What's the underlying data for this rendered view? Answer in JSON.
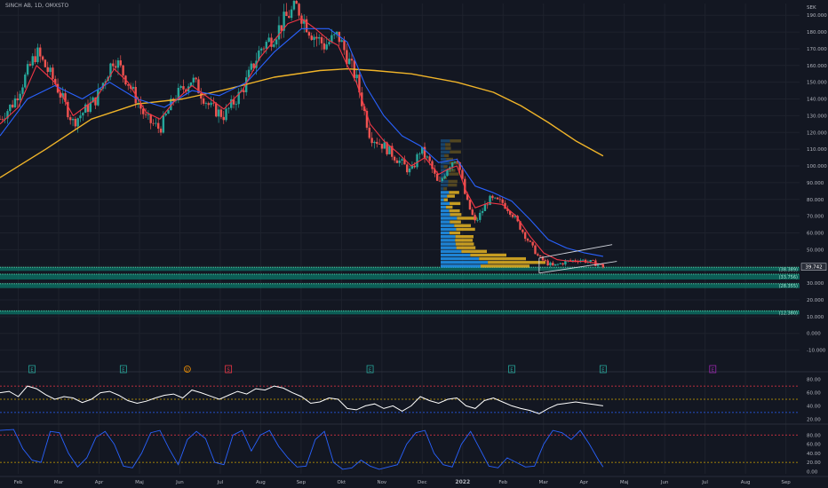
{
  "header": {
    "title": "SINCH AB, 1D, OMXSTO"
  },
  "colors": {
    "background": "#131722",
    "up": "#26a69a",
    "down": "#ef5350",
    "ema_fast": "#f23645",
    "ema_mid": "#2962ff",
    "sma_long": "#f0b429",
    "rsi": "#ffffff",
    "stoch": "#2962ff",
    "zone": "#089981",
    "vp_up": "#2196f3",
    "vp_down": "#e6b422",
    "event": "#26a69a"
  },
  "chart_data": [
    {
      "type": "candlestick",
      "title": "SINCH AB, 1D, OMXSTO",
      "currency": "SEK",
      "x_labels": [
        "Feb",
        "Mar",
        "Apr",
        "Maj",
        "Jun",
        "Jul",
        "Aug",
        "Sep",
        "Okt",
        "Nov",
        "Dec",
        "2022",
        "Feb",
        "Mar",
        "Apr",
        "Maj",
        "Jun",
        "Jul",
        "Aug",
        "Sep"
      ],
      "y_ticks": [
        -10,
        0,
        10,
        20,
        30,
        40,
        50,
        60,
        70,
        80,
        90,
        100,
        110,
        120,
        130,
        140,
        150,
        160,
        170,
        180,
        190
      ],
      "y_range": [
        -15,
        197
      ],
      "last_price": "39.742",
      "zone_labels": [
        "(38.389)",
        "(33.756)",
        "(28.355)",
        "(12.380)"
      ],
      "close_series": [
        [
          0,
          128
        ],
        [
          3,
          138
        ],
        [
          8,
          168
        ],
        [
          12,
          150
        ],
        [
          16,
          126
        ],
        [
          21,
          140
        ],
        [
          25,
          165
        ],
        [
          28,
          150
        ],
        [
          32,
          128
        ],
        [
          35,
          122
        ],
        [
          38,
          140
        ],
        [
          42,
          152
        ],
        [
          46,
          135
        ],
        [
          49,
          130
        ],
        [
          53,
          145
        ],
        [
          57,
          170
        ],
        [
          60,
          178
        ],
        [
          63,
          190
        ],
        [
          65,
          195
        ],
        [
          68,
          180
        ],
        [
          71,
          172
        ],
        [
          74,
          178
        ],
        [
          76,
          165
        ],
        [
          78,
          152
        ],
        [
          81,
          118
        ],
        [
          84,
          112
        ],
        [
          87,
          104
        ],
        [
          90,
          96
        ],
        [
          92,
          110
        ],
        [
          94,
          102
        ],
        [
          96,
          88
        ],
        [
          98,
          100
        ],
        [
          100,
          106
        ],
        [
          102,
          80
        ],
        [
          104,
          66
        ],
        [
          107,
          80
        ],
        [
          110,
          78
        ],
        [
          112,
          72
        ],
        [
          115,
          58
        ],
        [
          118,
          45
        ],
        [
          121,
          40
        ],
        [
          124,
          43
        ],
        [
          127,
          44
        ],
        [
          130,
          42
        ],
        [
          132,
          40
        ]
      ],
      "ema_fast": [
        [
          0,
          125
        ],
        [
          4,
          135
        ],
        [
          8,
          160
        ],
        [
          12,
          150
        ],
        [
          16,
          130
        ],
        [
          21,
          140
        ],
        [
          25,
          158
        ],
        [
          28,
          150
        ],
        [
          32,
          132
        ],
        [
          35,
          128
        ],
        [
          38,
          138
        ],
        [
          42,
          148
        ],
        [
          46,
          140
        ],
        [
          49,
          134
        ],
        [
          53,
          145
        ],
        [
          57,
          165
        ],
        [
          60,
          175
        ],
        [
          63,
          185
        ],
        [
          66,
          188
        ],
        [
          69,
          182
        ],
        [
          72,
          175
        ],
        [
          74,
          172
        ],
        [
          76,
          160
        ],
        [
          78,
          150
        ],
        [
          81,
          125
        ],
        [
          84,
          115
        ],
        [
          87,
          108
        ],
        [
          90,
          100
        ],
        [
          93,
          105
        ],
        [
          96,
          95
        ],
        [
          98,
          98
        ],
        [
          100,
          100
        ],
        [
          102,
          85
        ],
        [
          104,
          75
        ],
        [
          107,
          78
        ],
        [
          110,
          77
        ],
        [
          113,
          70
        ],
        [
          116,
          58
        ],
        [
          119,
          48
        ],
        [
          122,
          44
        ],
        [
          125,
          43
        ],
        [
          128,
          43
        ],
        [
          132,
          41
        ]
      ],
      "ema_mid": [
        [
          0,
          118
        ],
        [
          6,
          140
        ],
        [
          12,
          148
        ],
        [
          18,
          140
        ],
        [
          24,
          150
        ],
        [
          30,
          140
        ],
        [
          36,
          135
        ],
        [
          42,
          145
        ],
        [
          48,
          142
        ],
        [
          54,
          150
        ],
        [
          60,
          168
        ],
        [
          66,
          182
        ],
        [
          72,
          182
        ],
        [
          76,
          174
        ],
        [
          80,
          148
        ],
        [
          84,
          130
        ],
        [
          88,
          118
        ],
        [
          92,
          112
        ],
        [
          96,
          102
        ],
        [
          100,
          104
        ],
        [
          104,
          88
        ],
        [
          108,
          84
        ],
        [
          112,
          79
        ],
        [
          116,
          68
        ],
        [
          120,
          56
        ],
        [
          124,
          51
        ],
        [
          128,
          48
        ],
        [
          132,
          46
        ]
      ],
      "sma_long": [
        [
          0,
          93
        ],
        [
          10,
          110
        ],
        [
          20,
          128
        ],
        [
          30,
          137
        ],
        [
          40,
          140
        ],
        [
          50,
          146
        ],
        [
          60,
          153
        ],
        [
          70,
          157
        ],
        [
          76,
          158
        ],
        [
          82,
          157
        ],
        [
          90,
          155
        ],
        [
          100,
          150
        ],
        [
          108,
          144
        ],
        [
          114,
          136
        ],
        [
          120,
          126
        ],
        [
          126,
          115
        ],
        [
          132,
          106
        ]
      ],
      "resistance_line": [
        [
          118,
          45
        ],
        [
          134,
          53
        ]
      ],
      "support_line": [
        [
          118,
          36
        ],
        [
          135,
          43
        ]
      ]
    },
    {
      "type": "line",
      "title": "RSI",
      "y_ticks": [
        20,
        40,
        60,
        80
      ],
      "levels": [
        30,
        50,
        70
      ],
      "y_range": [
        15,
        85
      ],
      "series": [
        [
          0,
          60
        ],
        [
          2,
          62
        ],
        [
          4,
          54
        ],
        [
          6,
          70
        ],
        [
          8,
          66
        ],
        [
          10,
          57
        ],
        [
          12,
          50
        ],
        [
          14,
          54
        ],
        [
          16,
          52
        ],
        [
          18,
          45
        ],
        [
          20,
          50
        ],
        [
          22,
          60
        ],
        [
          24,
          62
        ],
        [
          26,
          56
        ],
        [
          28,
          48
        ],
        [
          30,
          44
        ],
        [
          32,
          47
        ],
        [
          34,
          52
        ],
        [
          36,
          56
        ],
        [
          38,
          58
        ],
        [
          40,
          52
        ],
        [
          42,
          64
        ],
        [
          44,
          60
        ],
        [
          46,
          55
        ],
        [
          48,
          50
        ],
        [
          50,
          56
        ],
        [
          52,
          62
        ],
        [
          54,
          58
        ],
        [
          56,
          66
        ],
        [
          58,
          64
        ],
        [
          60,
          70
        ],
        [
          62,
          67
        ],
        [
          64,
          60
        ],
        [
          66,
          54
        ],
        [
          68,
          44
        ],
        [
          70,
          46
        ],
        [
          72,
          52
        ],
        [
          74,
          50
        ],
        [
          76,
          36
        ],
        [
          78,
          34
        ],
        [
          80,
          40
        ],
        [
          82,
          43
        ],
        [
          84,
          36
        ],
        [
          86,
          40
        ],
        [
          88,
          32
        ],
        [
          90,
          40
        ],
        [
          92,
          54
        ],
        [
          94,
          48
        ],
        [
          96,
          44
        ],
        [
          98,
          50
        ],
        [
          100,
          52
        ],
        [
          102,
          40
        ],
        [
          104,
          36
        ],
        [
          106,
          48
        ],
        [
          108,
          52
        ],
        [
          110,
          46
        ],
        [
          112,
          40
        ],
        [
          114,
          36
        ],
        [
          116,
          33
        ],
        [
          118,
          28
        ],
        [
          120,
          36
        ],
        [
          122,
          42
        ],
        [
          124,
          44
        ],
        [
          126,
          46
        ],
        [
          128,
          44
        ],
        [
          130,
          42
        ],
        [
          132,
          40
        ]
      ]
    },
    {
      "type": "line",
      "title": "Stochastic RSI",
      "y_ticks": [
        0,
        20,
        40,
        60,
        80
      ],
      "levels": [
        20,
        80
      ],
      "y_range": [
        -5,
        100
      ],
      "series": [
        [
          0,
          90
        ],
        [
          3,
          92
        ],
        [
          5,
          50
        ],
        [
          7,
          25
        ],
        [
          9,
          20
        ],
        [
          11,
          88
        ],
        [
          13,
          85
        ],
        [
          15,
          40
        ],
        [
          17,
          10
        ],
        [
          19,
          30
        ],
        [
          21,
          75
        ],
        [
          23,
          88
        ],
        [
          25,
          60
        ],
        [
          27,
          12
        ],
        [
          29,
          8
        ],
        [
          31,
          40
        ],
        [
          33,
          85
        ],
        [
          35,
          90
        ],
        [
          37,
          50
        ],
        [
          39,
          15
        ],
        [
          41,
          70
        ],
        [
          43,
          88
        ],
        [
          45,
          72
        ],
        [
          47,
          20
        ],
        [
          49,
          15
        ],
        [
          51,
          80
        ],
        [
          53,
          90
        ],
        [
          55,
          45
        ],
        [
          57,
          80
        ],
        [
          59,
          90
        ],
        [
          61,
          55
        ],
        [
          63,
          30
        ],
        [
          65,
          10
        ],
        [
          67,
          12
        ],
        [
          69,
          70
        ],
        [
          71,
          88
        ],
        [
          73,
          20
        ],
        [
          75,
          5
        ],
        [
          77,
          8
        ],
        [
          79,
          25
        ],
        [
          81,
          12
        ],
        [
          83,
          5
        ],
        [
          85,
          10
        ],
        [
          87,
          15
        ],
        [
          89,
          60
        ],
        [
          91,
          85
        ],
        [
          93,
          90
        ],
        [
          95,
          40
        ],
        [
          97,
          15
        ],
        [
          99,
          10
        ],
        [
          101,
          60
        ],
        [
          103,
          88
        ],
        [
          105,
          50
        ],
        [
          107,
          12
        ],
        [
          109,
          8
        ],
        [
          111,
          30
        ],
        [
          113,
          20
        ],
        [
          115,
          10
        ],
        [
          117,
          12
        ],
        [
          119,
          60
        ],
        [
          121,
          90
        ],
        [
          123,
          85
        ],
        [
          125,
          70
        ],
        [
          127,
          90
        ],
        [
          129,
          60
        ],
        [
          131,
          25
        ],
        [
          132,
          10
        ]
      ]
    }
  ],
  "event_markers": [
    {
      "label": "E",
      "kind": "earnings"
    },
    {
      "label": "E",
      "kind": "earnings"
    },
    {
      "label": "D",
      "kind": "dividend"
    },
    {
      "label": "S",
      "kind": "split"
    },
    {
      "label": "E",
      "kind": "earnings"
    },
    {
      "label": "E",
      "kind": "earnings"
    },
    {
      "label": "E",
      "kind": "earnings"
    },
    {
      "label": "E",
      "kind": "upcoming"
    }
  ]
}
